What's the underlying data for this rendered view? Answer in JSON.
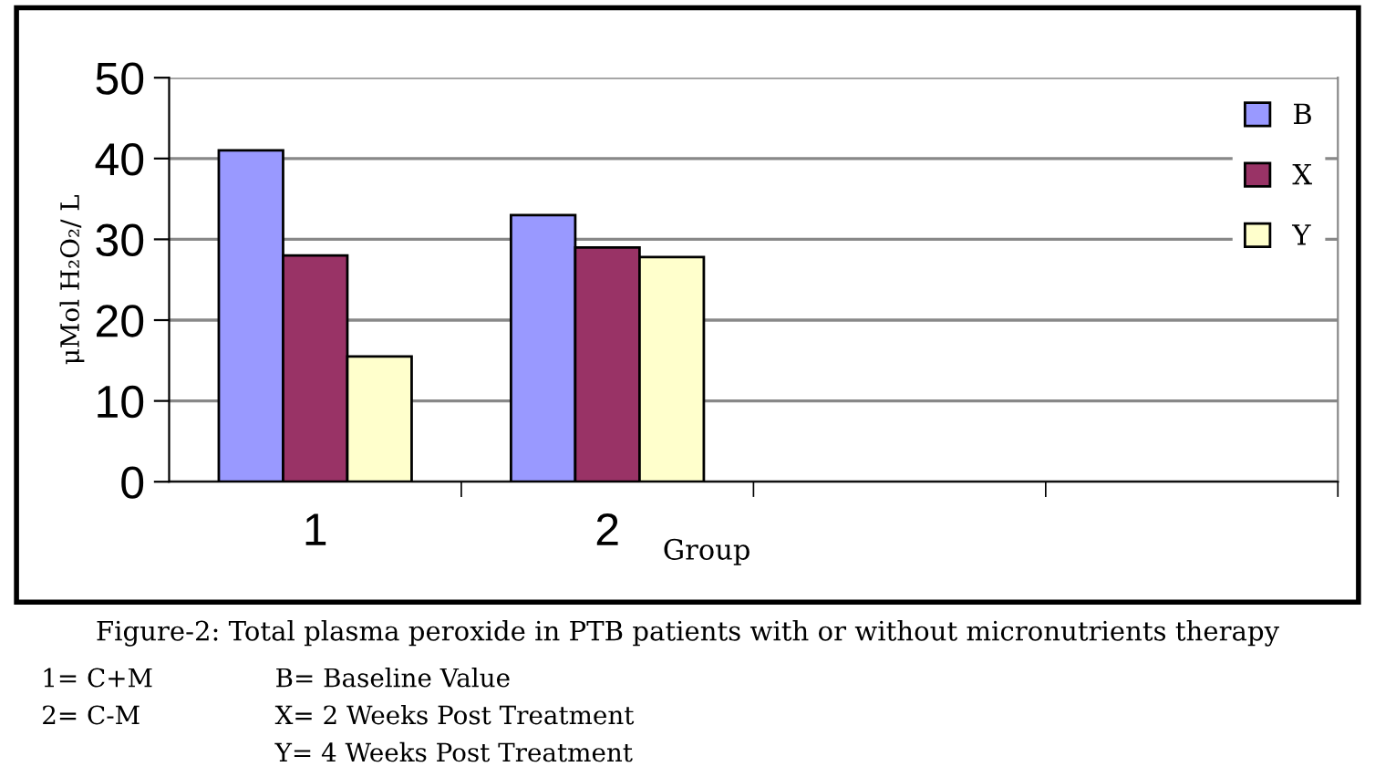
{
  "chart_data": {
    "type": "bar",
    "ylabel": "μMol H₂O₂/ L",
    "xlabel": "Group",
    "categories": [
      "1",
      "2",
      null,
      null
    ],
    "series": [
      {
        "name": "B",
        "color": "#9999ff",
        "values": [
          41,
          33,
          null,
          null
        ]
      },
      {
        "name": "X",
        "color": "#993366",
        "values": [
          28,
          29,
          null,
          null
        ]
      },
      {
        "name": "Y",
        "color": "#ffffcc",
        "values": [
          15.5,
          27.8,
          null,
          null
        ]
      }
    ],
    "ylim": [
      0,
      50
    ],
    "yticks": [
      0,
      10,
      20,
      30,
      40,
      50
    ],
    "grid": "y",
    "legend": "top right",
    "annotations": [
      "Figure-2: Total plasma peroxide in PTB patients with or without micronutrients therapy",
      "1= C+M",
      "2= C-M",
      "B= Baseline Value",
      "X= 2 Weeks Post Treatment",
      "Y= 4 Weeks Post Treatment"
    ]
  }
}
